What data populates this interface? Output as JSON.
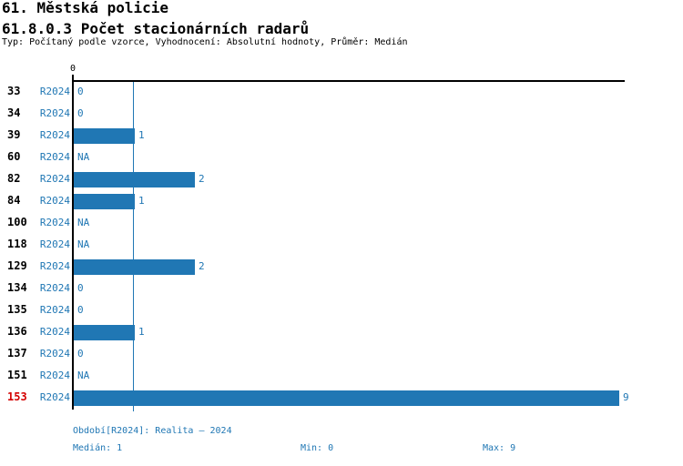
{
  "header": {
    "title_line1": "61. Městská policie",
    "title_line2": "61.8.0.3 Počet stacionárních radarů",
    "subtitle": "Typ: Počítaný podle vzorce, Vyhodnocení: Absolutní hodnoty, Průměr: Medián"
  },
  "chart_data": {
    "type": "bar",
    "orientation": "horizontal",
    "title": "61.8.0.3 Počet stacionárních radarů",
    "categories": [
      "33",
      "34",
      "39",
      "60",
      "82",
      "84",
      "100",
      "118",
      "129",
      "134",
      "135",
      "136",
      "137",
      "151",
      "153"
    ],
    "series": [
      {
        "name": "R2024",
        "values": [
          0,
          0,
          1,
          null,
          2,
          1,
          null,
          null,
          2,
          0,
          0,
          1,
          0,
          null,
          9
        ],
        "value_labels": [
          "0",
          "0",
          "1",
          "NA",
          "2",
          "1",
          "NA",
          "NA",
          "2",
          "0",
          "0",
          "1",
          "0",
          "NA",
          "9"
        ]
      }
    ],
    "axis_zero_label": "0",
    "xlim": [
      0,
      9
    ],
    "median_line_value": 1,
    "highlighted_category": "153",
    "legend_position": "none",
    "grid": "median-line-only",
    "colors": {
      "bar": "#2077b4",
      "value_text": "#2077b4",
      "period_text": "#2077b4",
      "category_text": "#000000",
      "highlight_text": "#d40000",
      "axis": "#000000",
      "median_line": "#2077b4"
    }
  },
  "footer": {
    "period_info": "Období[R2024]: Realita – 2024",
    "median_label": "Medián: 1",
    "min_label": "Min: 0",
    "max_label": "Max: 9"
  }
}
